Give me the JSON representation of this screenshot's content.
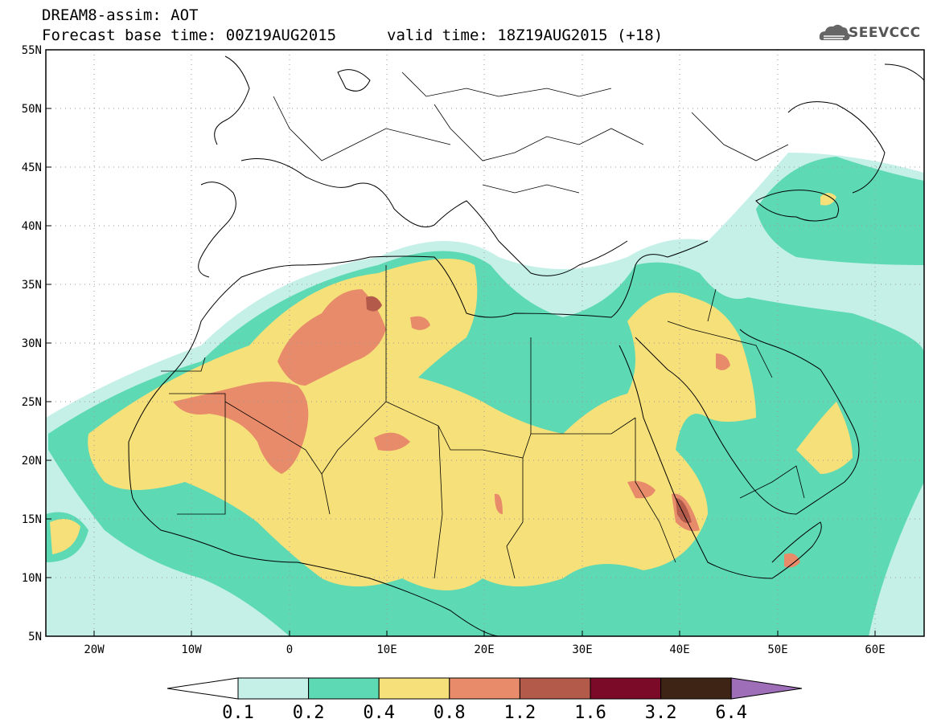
{
  "header": {
    "title": "DREAM8-assim: AOT",
    "forecast_base": "Forecast base time: 00Z19AUG2015",
    "valid_time": "valid time: 18Z19AUG2015 (+18)",
    "logo_text": "SEEVCCC"
  },
  "axes": {
    "lat_labels": [
      "55N",
      "50N",
      "45N",
      "40N",
      "35N",
      "30N",
      "25N",
      "20N",
      "15N",
      "10N",
      "5N"
    ],
    "lon_labels": [
      "20W",
      "10W",
      "0",
      "10E",
      "20E",
      "30E",
      "40E",
      "50E",
      "60E"
    ],
    "lon_range": [
      -25,
      65
    ],
    "lat_range": [
      5,
      55
    ]
  },
  "colorbar": {
    "labels": [
      "0.1",
      "0.2",
      "0.4",
      "0.8",
      "1.2",
      "1.6",
      "3.2",
      "6.4"
    ],
    "colors": [
      "#c4f0e8",
      "#5dd9b4",
      "#f5e07a",
      "#e88b6a",
      "#b45a4a",
      "#7a0a28",
      "#3d2414",
      "#9e6fb8"
    ],
    "under_color": "#ffffff"
  },
  "colors": {
    "land_bg": "#ffffff",
    "border": "#000000",
    "grid": "#9a9a9a"
  }
}
